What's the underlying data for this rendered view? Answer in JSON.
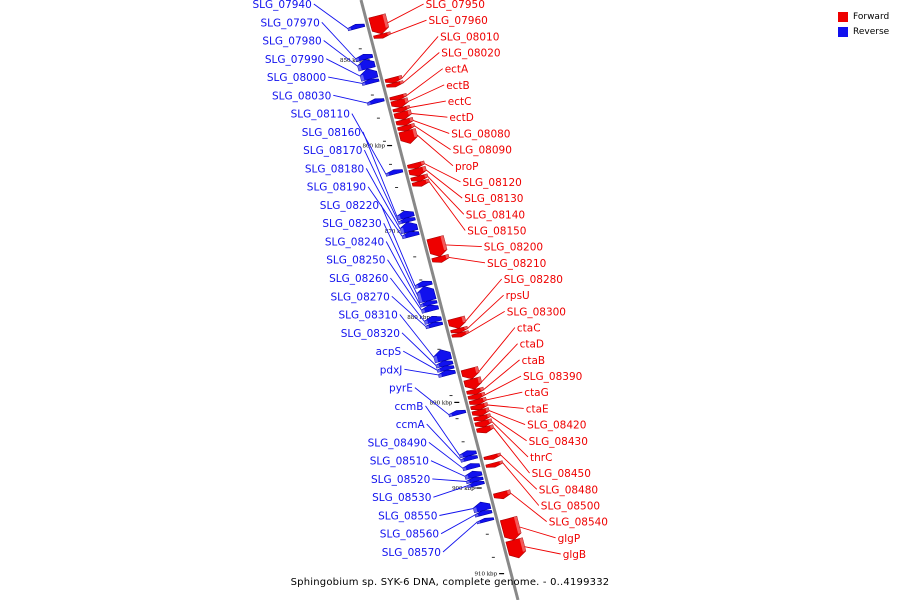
{
  "caption": "Sphingobium sp. SYK-6 DNA, complete genome. - 0..4199332",
  "colors": {
    "forward": "#ee0000",
    "reverse": "#1111ee",
    "axis": "#888888"
  },
  "legend": [
    {
      "label": "Forward",
      "strand": "forward"
    },
    {
      "label": "Reverse",
      "strand": "reverse"
    }
  ],
  "scale_ticks": [
    {
      "label": "850 kbp",
      "pos_kbp": 850
    },
    {
      "label": "860 kbp",
      "pos_kbp": 860
    },
    {
      "label": "870 kbp",
      "pos_kbp": 870
    },
    {
      "label": "880 kbp",
      "pos_kbp": 880
    },
    {
      "label": "890 kbp",
      "pos_kbp": 890
    },
    {
      "label": "900 kbp",
      "pos_kbp": 900
    },
    {
      "label": "910 kbp",
      "pos_kbp": 910
    }
  ],
  "genes": [
    {
      "name": "SLG_07940",
      "strand": "reverse",
      "start_kbp": 845.5,
      "end_kbp": 846.0
    },
    {
      "name": "SLG_07950",
      "strand": "forward",
      "start_kbp": 845.2,
      "end_kbp": 847.3
    },
    {
      "name": "SLG_07960",
      "strand": "forward",
      "start_kbp": 847.3,
      "end_kbp": 847.8
    },
    {
      "name": "SLG_07970",
      "strand": "reverse",
      "start_kbp": 849.0,
      "end_kbp": 849.6
    },
    {
      "name": "SLG_07980",
      "strand": "reverse",
      "start_kbp": 849.6,
      "end_kbp": 850.7
    },
    {
      "name": "SLG_07990",
      "strand": "reverse",
      "start_kbp": 850.7,
      "end_kbp": 851.9
    },
    {
      "name": "SLG_08000",
      "strand": "reverse",
      "start_kbp": 851.9,
      "end_kbp": 852.4
    },
    {
      "name": "SLG_08010",
      "strand": "forward",
      "start_kbp": 852.4,
      "end_kbp": 853.0
    },
    {
      "name": "SLG_08020",
      "strand": "forward",
      "start_kbp": 853.0,
      "end_kbp": 853.5
    },
    {
      "name": "SLG_08030",
      "strand": "reverse",
      "start_kbp": 854.2,
      "end_kbp": 854.7
    },
    {
      "name": "ectA",
      "strand": "forward",
      "start_kbp": 854.5,
      "end_kbp": 855.0
    },
    {
      "name": "ectB",
      "strand": "forward",
      "start_kbp": 855.0,
      "end_kbp": 855.9
    },
    {
      "name": "ectC",
      "strand": "forward",
      "start_kbp": 855.9,
      "end_kbp": 856.4
    },
    {
      "name": "ectD",
      "strand": "forward",
      "start_kbp": 856.4,
      "end_kbp": 857.3
    },
    {
      "name": "SLG_08080",
      "strand": "forward",
      "start_kbp": 857.3,
      "end_kbp": 858.0
    },
    {
      "name": "SLG_08090",
      "strand": "forward",
      "start_kbp": 858.0,
      "end_kbp": 858.6
    },
    {
      "name": "proP",
      "strand": "forward",
      "start_kbp": 858.6,
      "end_kbp": 860.1
    },
    {
      "name": "SLG_08110",
      "strand": "reverse",
      "start_kbp": 862.5,
      "end_kbp": 863.0
    },
    {
      "name": "SLG_08120",
      "strand": "forward",
      "start_kbp": 862.4,
      "end_kbp": 863.0
    },
    {
      "name": "SLG_08130",
      "strand": "forward",
      "start_kbp": 863.0,
      "end_kbp": 863.9
    },
    {
      "name": "SLG_08140",
      "strand": "forward",
      "start_kbp": 863.9,
      "end_kbp": 864.5
    },
    {
      "name": "SLG_08150",
      "strand": "forward",
      "start_kbp": 864.5,
      "end_kbp": 865.1
    },
    {
      "name": "SLG_08160",
      "strand": "reverse",
      "start_kbp": 867.3,
      "end_kbp": 868.1
    },
    {
      "name": "SLG_08170",
      "strand": "reverse",
      "start_kbp": 868.1,
      "end_kbp": 868.6
    },
    {
      "name": "SLG_08180",
      "strand": "reverse",
      "start_kbp": 868.6,
      "end_kbp": 869.7
    },
    {
      "name": "SLG_08190",
      "strand": "reverse",
      "start_kbp": 869.7,
      "end_kbp": 870.3
    },
    {
      "name": "SLG_08200",
      "strand": "forward",
      "start_kbp": 871.1,
      "end_kbp": 873.3
    },
    {
      "name": "SLG_08210",
      "strand": "forward",
      "start_kbp": 873.3,
      "end_kbp": 874.0
    },
    {
      "name": "SLG_08220",
      "strand": "reverse",
      "start_kbp": 875.5,
      "end_kbp": 876.1
    },
    {
      "name": "SLG_08230",
      "strand": "reverse",
      "start_kbp": 876.1,
      "end_kbp": 877.8
    },
    {
      "name": "SLG_08240",
      "strand": "reverse",
      "start_kbp": 877.8,
      "end_kbp": 878.3
    },
    {
      "name": "SLG_08250",
      "strand": "reverse",
      "start_kbp": 878.3,
      "end_kbp": 879.0
    },
    {
      "name": "SLG_08260",
      "strand": "reverse",
      "start_kbp": 879.6,
      "end_kbp": 880.3
    },
    {
      "name": "SLG_08270",
      "strand": "reverse",
      "start_kbp": 880.3,
      "end_kbp": 880.8
    },
    {
      "name": "SLG_08280",
      "strand": "forward",
      "start_kbp": 880.5,
      "end_kbp": 881.7
    },
    {
      "name": "rpsU",
      "strand": "forward",
      "start_kbp": 881.7,
      "end_kbp": 882.2
    },
    {
      "name": "SLG_08300",
      "strand": "forward",
      "start_kbp": 882.2,
      "end_kbp": 882.7
    },
    {
      "name": "SLG_08310",
      "strand": "reverse",
      "start_kbp": 883.5,
      "end_kbp": 884.8
    },
    {
      "name": "SLG_08320",
      "strand": "reverse",
      "start_kbp": 884.8,
      "end_kbp": 885.4
    },
    {
      "name": "acpS",
      "strand": "reverse",
      "start_kbp": 885.4,
      "end_kbp": 885.9
    },
    {
      "name": "pdxJ",
      "strand": "reverse",
      "start_kbp": 885.9,
      "end_kbp": 886.5
    },
    {
      "name": "ctaC",
      "strand": "forward",
      "start_kbp": 886.4,
      "end_kbp": 887.6
    },
    {
      "name": "ctaD",
      "strand": "forward",
      "start_kbp": 887.6,
      "end_kbp": 888.8
    },
    {
      "name": "ctaB",
      "strand": "forward",
      "start_kbp": 888.8,
      "end_kbp": 889.4
    },
    {
      "name": "SLG_08390",
      "strand": "forward",
      "start_kbp": 889.4,
      "end_kbp": 890.0
    },
    {
      "name": "ctaG",
      "strand": "forward",
      "start_kbp": 890.0,
      "end_kbp": 890.6
    },
    {
      "name": "ctaE",
      "strand": "forward",
      "start_kbp": 890.6,
      "end_kbp": 891.2
    },
    {
      "name": "pyrE",
      "strand": "reverse",
      "start_kbp": 890.6,
      "end_kbp": 891.1
    },
    {
      "name": "SLG_08420",
      "strand": "forward",
      "start_kbp": 891.2,
      "end_kbp": 891.9
    },
    {
      "name": "SLG_08430",
      "strand": "forward",
      "start_kbp": 891.9,
      "end_kbp": 892.5
    },
    {
      "name": "thrC",
      "strand": "forward",
      "start_kbp": 892.5,
      "end_kbp": 893.2
    },
    {
      "name": "SLG_08450",
      "strand": "forward",
      "start_kbp": 893.2,
      "end_kbp": 893.9
    },
    {
      "name": "ccmB",
      "strand": "reverse",
      "start_kbp": 895.3,
      "end_kbp": 895.9
    },
    {
      "name": "ccmA",
      "strand": "reverse",
      "start_kbp": 895.9,
      "end_kbp": 896.4
    },
    {
      "name": "SLG_08480",
      "strand": "forward",
      "start_kbp": 896.5,
      "end_kbp": 897.0
    },
    {
      "name": "SLG_08490",
      "strand": "reverse",
      "start_kbp": 896.8,
      "end_kbp": 897.4
    },
    {
      "name": "SLG_08500",
      "strand": "forward",
      "start_kbp": 897.4,
      "end_kbp": 897.9
    },
    {
      "name": "SLG_08510",
      "strand": "reverse",
      "start_kbp": 897.7,
      "end_kbp": 898.4
    },
    {
      "name": "SLG_08520",
      "strand": "reverse",
      "start_kbp": 898.4,
      "end_kbp": 898.9
    },
    {
      "name": "SLG_08530",
      "strand": "reverse",
      "start_kbp": 898.9,
      "end_kbp": 899.4
    },
    {
      "name": "SLG_08540",
      "strand": "forward",
      "start_kbp": 900.8,
      "end_kbp": 901.6
    },
    {
      "name": "SLG_08550",
      "strand": "reverse",
      "start_kbp": 901.3,
      "end_kbp": 902.3
    },
    {
      "name": "SLG_08560",
      "strand": "reverse",
      "start_kbp": 902.3,
      "end_kbp": 902.8
    },
    {
      "name": "SLG_08570",
      "strand": "reverse",
      "start_kbp": 903.2,
      "end_kbp": 903.6
    },
    {
      "name": "glgP",
      "strand": "forward",
      "start_kbp": 903.9,
      "end_kbp": 906.4
    },
    {
      "name": "glgB",
      "strand": "forward",
      "start_kbp": 906.4,
      "end_kbp": 908.5
    }
  ]
}
